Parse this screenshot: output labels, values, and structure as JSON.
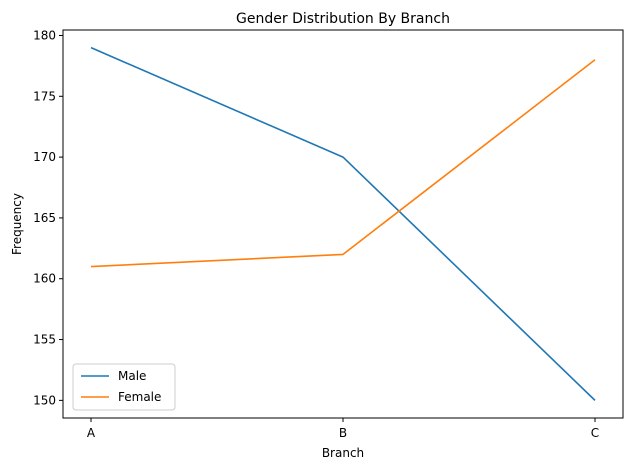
{
  "chart_data": {
    "type": "line",
    "title": "Gender Distribution By Branch",
    "xlabel": "Branch",
    "ylabel": "Frequency",
    "categories": [
      "A",
      "B",
      "C"
    ],
    "series": [
      {
        "name": "Male",
        "values": [
          179,
          170,
          150
        ],
        "color": "#1f77b4"
      },
      {
        "name": "Female",
        "values": [
          161,
          162,
          178
        ],
        "color": "#ff7f0e"
      }
    ],
    "ylim": [
      148.55,
      180.45
    ],
    "yticks": [
      150,
      155,
      160,
      165,
      170,
      175,
      180
    ],
    "grid": false,
    "legend_position": "lower-left"
  }
}
